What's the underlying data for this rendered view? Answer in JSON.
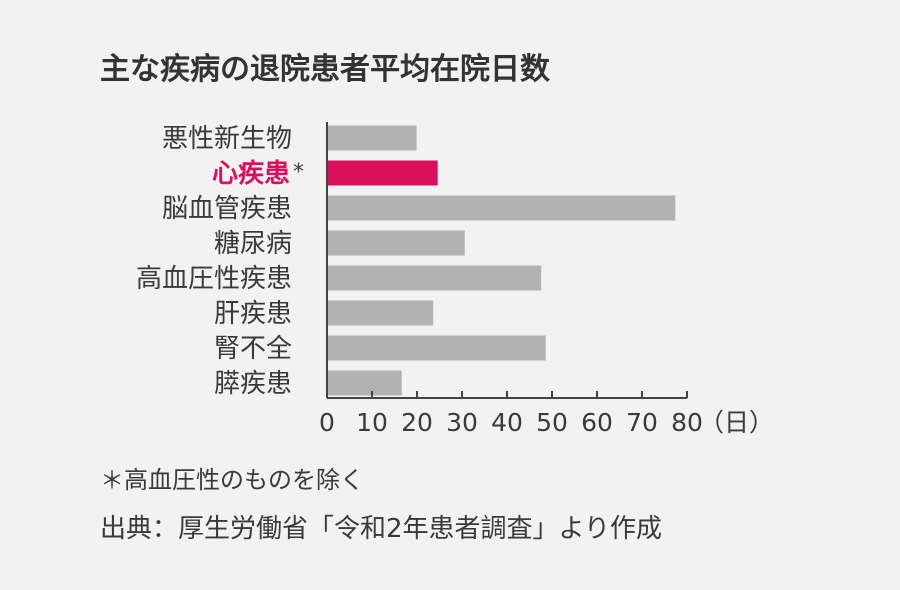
{
  "chart_data": {
    "type": "bar",
    "orientation": "horizontal",
    "title": "主な疾病の退院患者平均在院日数",
    "categories": [
      "悪性新生物",
      "心疾患",
      "脳血管疾患",
      "糖尿病",
      "高血圧性疾患",
      "肝疾患",
      "腎不全",
      "膵疾患"
    ],
    "category_markers": [
      "",
      "*",
      "",
      "",
      "",
      "",
      "",
      ""
    ],
    "values": [
      19.9,
      24.6,
      77.4,
      30.6,
      47.6,
      23.6,
      48.6,
      16.6
    ],
    "highlight_index": 1,
    "xlim": [
      0,
      80
    ],
    "xticks": [
      "0",
      "10",
      "20",
      "30",
      "40",
      "50",
      "60",
      "70",
      "80"
    ],
    "x_unit": "（日）",
    "grid": false,
    "colors": {
      "bar": "#b2b2b2",
      "highlight": "#d9105c",
      "axis": "#444444",
      "text": "#3a3a3a"
    }
  },
  "footnote": "＊高血圧性のものを除く",
  "source": "出典：厚生労働省「令和2年患者調査」より作成"
}
